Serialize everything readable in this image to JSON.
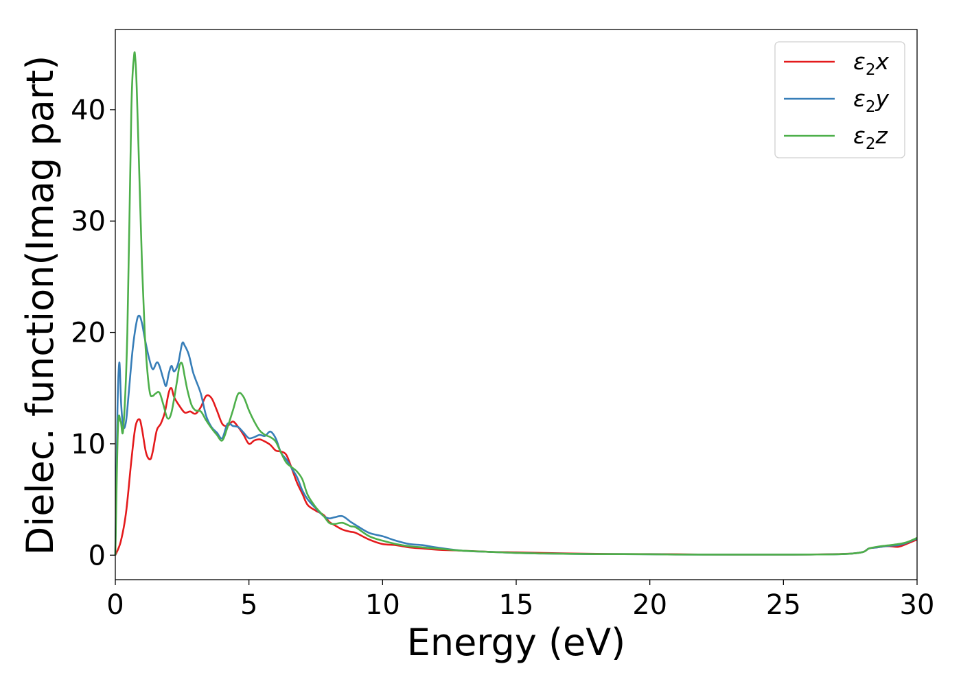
{
  "chart_data": {
    "type": "line",
    "title": "",
    "xlabel": "Energy (eV)",
    "ylabel": "Dielec. function(Imag part)",
    "xlim": [
      0,
      30
    ],
    "ylim": [
      -2.2,
      47.2
    ],
    "xticks": [
      0,
      5,
      10,
      15,
      20,
      25,
      30
    ],
    "yticks": [
      0,
      10,
      20,
      30,
      40
    ],
    "grid": false,
    "legend_position": "top-right",
    "series": [
      {
        "name": "ε₂x",
        "legend": {
          "base": "ε",
          "sub": "2",
          "var": "x"
        },
        "color": "#e41a1c",
        "x": [
          0,
          0.2,
          0.4,
          0.6,
          0.75,
          0.9,
          1.0,
          1.15,
          1.3,
          1.4,
          1.55,
          1.7,
          1.85,
          2.0,
          2.1,
          2.2,
          2.4,
          2.6,
          2.8,
          3.0,
          3.2,
          3.4,
          3.6,
          3.8,
          4.0,
          4.2,
          4.4,
          4.6,
          4.8,
          5.0,
          5.2,
          5.4,
          5.6,
          5.8,
          6.0,
          6.2,
          6.4,
          6.6,
          6.8,
          7.0,
          7.2,
          7.5,
          7.8,
          8.0,
          8.2,
          8.5,
          8.8,
          9.0,
          9.5,
          10.0,
          10.5,
          11.0,
          11.5,
          12.0,
          13.0,
          14.0,
          15.0,
          16.0,
          17.0,
          18.0,
          19.0,
          20.0,
          21.0,
          22.0,
          23.0,
          24.0,
          25.0,
          26.0,
          27.0,
          27.6,
          28.0,
          28.2,
          28.5,
          28.8,
          29.0,
          29.3,
          29.6,
          30.0
        ],
        "y": [
          0,
          1.2,
          3.8,
          8.5,
          11.5,
          12.2,
          11.3,
          9.2,
          8.6,
          9.3,
          11.2,
          11.8,
          12.8,
          14.6,
          15.0,
          14.2,
          13.4,
          12.8,
          12.9,
          12.7,
          13.3,
          14.3,
          14.1,
          13.0,
          11.8,
          11.6,
          12.0,
          11.5,
          10.8,
          10.0,
          10.3,
          10.4,
          10.2,
          9.9,
          9.4,
          9.3,
          9.0,
          7.8,
          6.5,
          5.5,
          4.5,
          4.0,
          3.6,
          3.0,
          2.7,
          2.3,
          2.1,
          2.0,
          1.4,
          1.0,
          0.9,
          0.7,
          0.6,
          0.5,
          0.4,
          0.3,
          0.25,
          0.2,
          0.15,
          0.12,
          0.1,
          0.1,
          0.08,
          0.06,
          0.05,
          0.05,
          0.05,
          0.06,
          0.1,
          0.15,
          0.3,
          0.6,
          0.7,
          0.8,
          0.8,
          0.75,
          1.0,
          1.4
        ]
      },
      {
        "name": "ε₂y",
        "legend": {
          "base": "ε",
          "sub": "2",
          "var": "y"
        },
        "color": "#377eb8",
        "x": [
          0,
          0.08,
          0.15,
          0.22,
          0.3,
          0.4,
          0.5,
          0.65,
          0.8,
          0.9,
          1.0,
          1.1,
          1.25,
          1.4,
          1.55,
          1.65,
          1.8,
          1.9,
          2.0,
          2.1,
          2.2,
          2.35,
          2.5,
          2.6,
          2.75,
          2.9,
          3.0,
          3.2,
          3.4,
          3.6,
          3.8,
          4.0,
          4.2,
          4.4,
          4.6,
          4.8,
          5.0,
          5.2,
          5.4,
          5.6,
          5.8,
          6.0,
          6.2,
          6.4,
          6.6,
          6.8,
          7.0,
          7.2,
          7.5,
          7.8,
          8.0,
          8.2,
          8.5,
          8.8,
          9.0,
          9.5,
          10.0,
          10.5,
          11.0,
          11.5,
          12.0,
          13.0,
          14.0,
          15.0,
          16.0,
          17.0,
          18.0,
          19.0,
          20.0,
          21.0,
          22.0,
          23.0,
          24.0,
          25.0,
          26.0,
          27.0,
          27.6,
          28.0,
          28.2,
          28.5,
          28.8,
          29.0,
          29.3,
          29.6,
          30.0
        ],
        "y": [
          0,
          13.0,
          17.3,
          13.5,
          11.5,
          12.0,
          14.5,
          18.5,
          21.0,
          21.5,
          20.8,
          19.5,
          17.8,
          16.7,
          17.3,
          17.0,
          15.8,
          15.2,
          16.3,
          17.0,
          16.5,
          17.2,
          19.0,
          18.8,
          18.0,
          16.5,
          15.8,
          14.5,
          12.5,
          11.5,
          11.0,
          10.5,
          11.8,
          11.6,
          11.5,
          11.0,
          10.5,
          10.6,
          10.8,
          10.7,
          11.1,
          10.5,
          9.2,
          8.6,
          7.8,
          7.0,
          5.8,
          5.0,
          4.2,
          3.5,
          3.3,
          3.4,
          3.5,
          3.0,
          2.7,
          2.0,
          1.7,
          1.3,
          1.0,
          0.9,
          0.7,
          0.4,
          0.3,
          0.2,
          0.15,
          0.12,
          0.1,
          0.1,
          0.08,
          0.06,
          0.05,
          0.05,
          0.05,
          0.05,
          0.06,
          0.08,
          0.15,
          0.3,
          0.6,
          0.7,
          0.8,
          0.85,
          0.9,
          1.1,
          1.5
        ]
      },
      {
        "name": "ε₂z",
        "legend": {
          "base": "ε",
          "sub": "2",
          "var": "z"
        },
        "color": "#4daf4a",
        "x": [
          0,
          0.1,
          0.2,
          0.3,
          0.45,
          0.6,
          0.7,
          0.75,
          0.8,
          0.9,
          1.0,
          1.1,
          1.2,
          1.3,
          1.4,
          1.5,
          1.65,
          1.8,
          1.95,
          2.1,
          2.3,
          2.4,
          2.5,
          2.6,
          2.7,
          2.85,
          3.0,
          3.2,
          3.4,
          3.6,
          3.8,
          4.0,
          4.2,
          4.4,
          4.6,
          4.8,
          5.0,
          5.2,
          5.4,
          5.6,
          5.8,
          6.0,
          6.2,
          6.4,
          6.6,
          6.8,
          7.0,
          7.2,
          7.5,
          7.8,
          8.0,
          8.2,
          8.5,
          8.8,
          9.0,
          9.5,
          10.0,
          10.5,
          11.0,
          11.5,
          12.0,
          13.0,
          14.0,
          15.0,
          16.0,
          17.0,
          18.0,
          19.0,
          20.0,
          21.0,
          22.0,
          23.0,
          24.0,
          25.0,
          26.0,
          27.0,
          27.6,
          28.0,
          28.2,
          28.5,
          28.8,
          29.0,
          29.3,
          29.6,
          30.0
        ],
        "y": [
          0,
          11.5,
          12.0,
          11.4,
          20.0,
          40.0,
          44.8,
          44.5,
          42.0,
          34.0,
          26.0,
          20.0,
          16.5,
          14.5,
          14.3,
          14.5,
          14.6,
          13.5,
          12.3,
          12.8,
          15.5,
          17.0,
          17.2,
          16.0,
          14.8,
          13.5,
          13.0,
          12.9,
          12.1,
          11.4,
          10.8,
          10.3,
          11.5,
          13.0,
          14.5,
          14.2,
          13.0,
          12.0,
          11.2,
          10.8,
          10.6,
          10.2,
          9.2,
          8.3,
          7.9,
          7.5,
          6.8,
          5.4,
          4.3,
          3.5,
          2.9,
          2.8,
          2.9,
          2.6,
          2.5,
          1.7,
          1.3,
          1.0,
          0.8,
          0.7,
          0.6,
          0.4,
          0.3,
          0.2,
          0.15,
          0.12,
          0.1,
          0.1,
          0.08,
          0.06,
          0.05,
          0.05,
          0.05,
          0.05,
          0.06,
          0.08,
          0.15,
          0.3,
          0.6,
          0.75,
          0.85,
          0.9,
          1.0,
          1.15,
          1.55
        ]
      }
    ]
  }
}
